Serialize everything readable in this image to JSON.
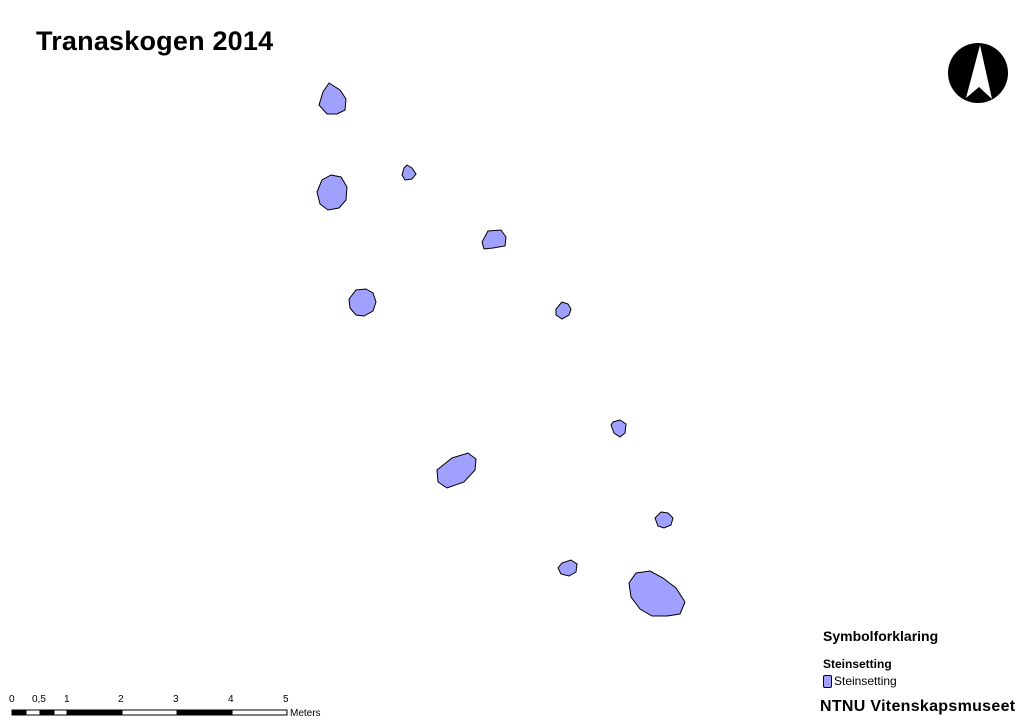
{
  "map": {
    "title": "Tranaskogen 2014",
    "fill_color": "#a0a0ff",
    "stroke_color": "#000000",
    "features_layer": "Steinsetting"
  },
  "north_arrow": {
    "icon": "north-arrow-icon"
  },
  "legend": {
    "title": "Symbolforklaring",
    "group": "Steinsetting",
    "items": [
      {
        "label": "Steinsetting",
        "color": "#a0a0ff"
      }
    ]
  },
  "scalebar": {
    "unit": "Meters",
    "ticks": [
      "0",
      "0,5",
      "1",
      "2",
      "3",
      "4",
      "5"
    ]
  },
  "credit": "NTNU Vitenskapsmuseet"
}
